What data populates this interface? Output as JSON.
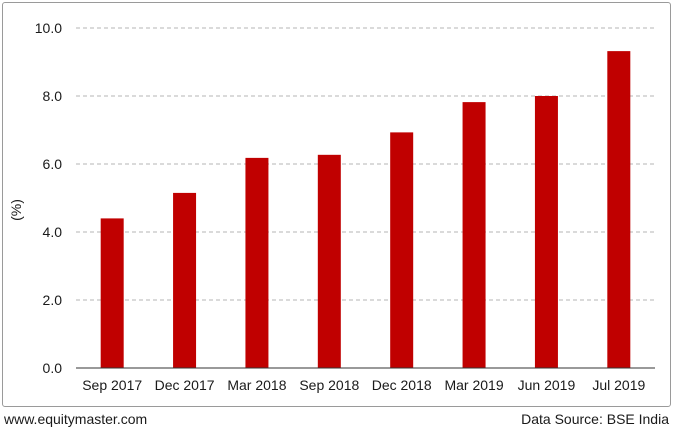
{
  "chart_data": {
    "type": "bar",
    "categories": [
      "Sep 2017",
      "Dec 2017",
      "Mar 2018",
      "Sep 2018",
      "Dec 2018",
      "Mar 2019",
      "Jun 2019",
      "Jul 2019"
    ],
    "values": [
      4.4,
      5.15,
      6.18,
      6.27,
      6.93,
      7.82,
      8.0,
      9.32
    ],
    "ylabel": "(%)",
    "xlabel": "",
    "title": "",
    "ylim": [
      0,
      10
    ],
    "yticks": [
      "0.0",
      "2.0",
      "4.0",
      "6.0",
      "8.0",
      "10.0"
    ],
    "grid": "horizontal dashed",
    "bar_color": "#c00000",
    "legend": "none"
  },
  "footer": {
    "website": "www.equitymaster.com",
    "source": "Data Source: BSE India"
  }
}
